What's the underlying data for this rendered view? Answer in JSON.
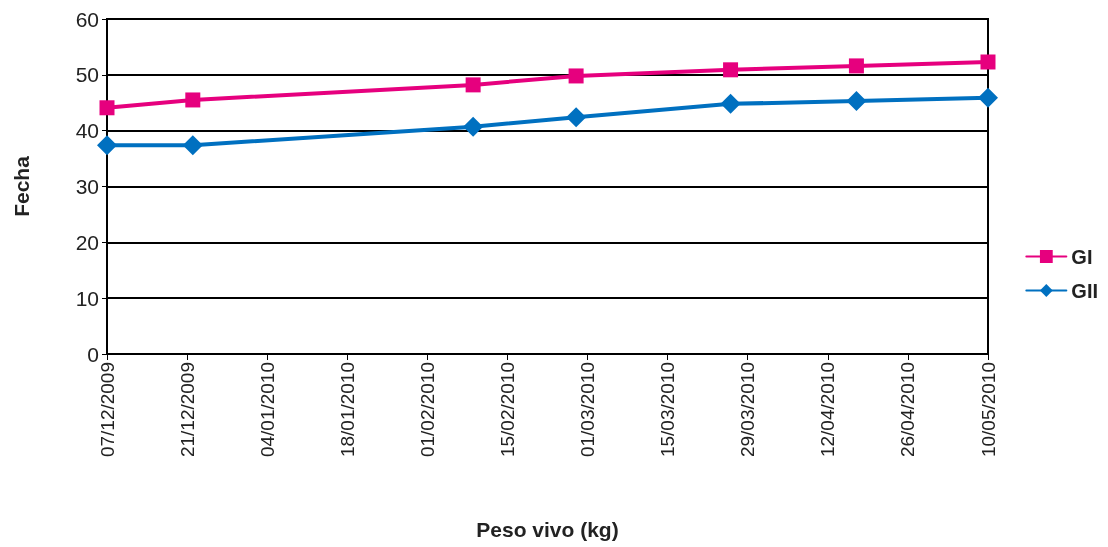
{
  "chart_data": {
    "type": "line",
    "xlabel": "Peso vivo (kg)",
    "ylabel": "Fecha",
    "x": [
      "2009-12-07",
      "2009-12-22",
      "2010-02-09",
      "2010-02-27",
      "2010-03-26",
      "2010-04-17",
      "2010-05-10"
    ],
    "series": [
      {
        "name": "GI",
        "color": "#e6007e",
        "marker": "square",
        "values": [
          44.1,
          45.5,
          48.2,
          49.8,
          50.9,
          51.6,
          52.3
        ]
      },
      {
        "name": "GII",
        "color": "#0070c0",
        "marker": "diamond",
        "values": [
          37.4,
          37.4,
          40.7,
          42.4,
          44.8,
          45.3,
          45.9
        ]
      }
    ],
    "xlim": [
      "2009-12-07",
      "2010-05-10"
    ],
    "xticks": [
      {
        "value": "2009-12-07",
        "label": "07/12/2009"
      },
      {
        "value": "2009-12-21",
        "label": "21/12/2009"
      },
      {
        "value": "2010-01-04",
        "label": "04/01/2010"
      },
      {
        "value": "2010-01-18",
        "label": "18/01/2010"
      },
      {
        "value": "2010-02-01",
        "label": "01/02/2010"
      },
      {
        "value": "2010-02-15",
        "label": "15/02/2010"
      },
      {
        "value": "2010-03-01",
        "label": "01/03/2010"
      },
      {
        "value": "2010-03-15",
        "label": "15/03/2010"
      },
      {
        "value": "2010-03-29",
        "label": "29/03/2010"
      },
      {
        "value": "2010-04-12",
        "label": "12/04/2010"
      },
      {
        "value": "2010-04-26",
        "label": "26/04/2010"
      },
      {
        "value": "2010-05-10",
        "label": "10/05/2010"
      }
    ],
    "ylim": [
      0,
      60
    ],
    "yticks": [
      0,
      10,
      20,
      30,
      40,
      50,
      60
    ],
    "grid": "y",
    "legend": "right",
    "line_style": "solid"
  }
}
